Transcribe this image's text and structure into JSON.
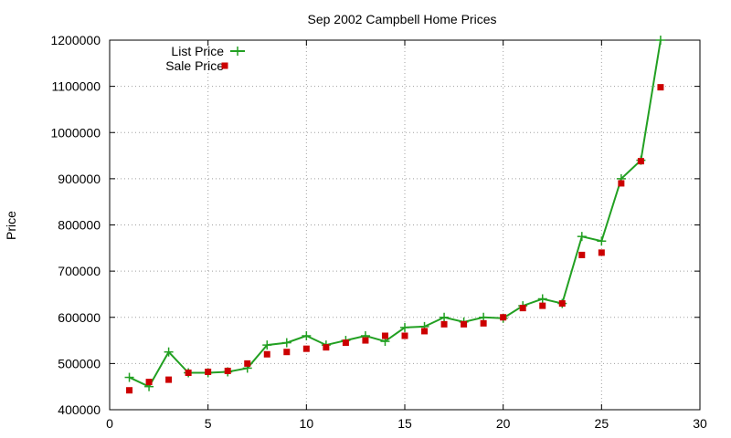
{
  "chart_data": {
    "type": "line",
    "title": "Sep 2002 Campbell Home Prices",
    "xlabel": "",
    "ylabel": "Price",
    "xlim": [
      0,
      30
    ],
    "ylim": [
      400000,
      1200000
    ],
    "xticks": [
      0,
      5,
      10,
      15,
      20,
      25,
      30
    ],
    "yticks": [
      400000,
      500000,
      600000,
      700000,
      800000,
      900000,
      1000000,
      1100000,
      1200000
    ],
    "grid": true,
    "legend_position": "top-left",
    "series": [
      {
        "name": "List Price",
        "style": "line-plus",
        "color": "#22a022",
        "x": [
          1,
          2,
          3,
          4,
          5,
          6,
          7,
          8,
          9,
          10,
          11,
          12,
          13,
          14,
          15,
          16,
          17,
          18,
          19,
          20,
          21,
          22,
          23,
          24,
          25,
          26,
          27,
          28
        ],
        "y": [
          470000,
          450000,
          525000,
          480000,
          480000,
          482000,
          490000,
          540000,
          545000,
          560000,
          540000,
          550000,
          560000,
          548000,
          578000,
          580000,
          600000,
          590000,
          600000,
          598000,
          625000,
          640000,
          630000,
          775000,
          765000,
          900000,
          940000,
          1200000
        ]
      },
      {
        "name": "Sale Price",
        "style": "square-marker",
        "color": "#cc0000",
        "x": [
          1,
          2,
          3,
          4,
          5,
          6,
          7,
          8,
          9,
          10,
          11,
          12,
          13,
          14,
          15,
          16,
          17,
          18,
          19,
          20,
          21,
          22,
          23,
          24,
          25,
          26,
          27,
          28
        ],
        "y": [
          442000,
          460000,
          465000,
          480000,
          482000,
          484000,
          500000,
          520000,
          525000,
          532000,
          535000,
          545000,
          550000,
          560000,
          560000,
          570000,
          585000,
          585000,
          587000,
          600000,
          620000,
          625000,
          630000,
          735000,
          740000,
          890000,
          938000,
          1098000
        ]
      }
    ]
  }
}
